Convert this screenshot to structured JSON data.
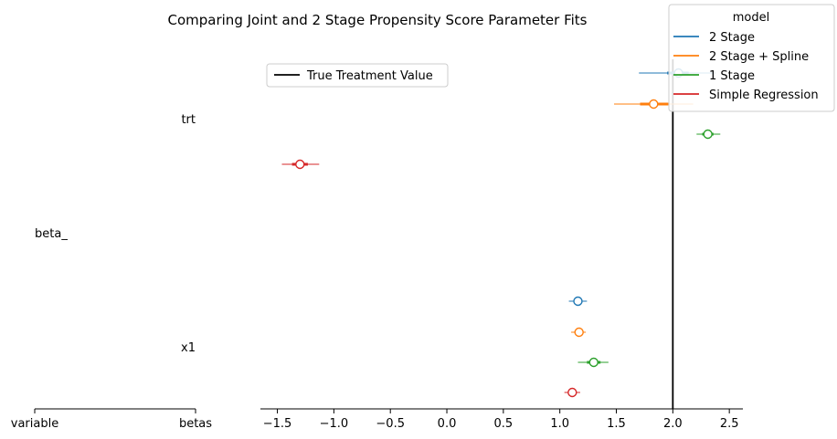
{
  "chart_data": {
    "type": "forest",
    "title": "Comparing Joint and 2 Stage Propensity Score Parameter Fits",
    "xlabel": "",
    "ylabel": "",
    "xlim": [
      -1.65,
      2.62
    ],
    "xticks": [
      -1.5,
      -1.0,
      -0.5,
      0.0,
      0.5,
      1.0,
      1.5,
      2.0,
      2.5
    ],
    "xtick_labels": [
      "−1.5",
      "−1.0",
      "−0.5",
      "0.0",
      "0.5",
      "1.0",
      "1.5",
      "2.0",
      "2.5"
    ],
    "label_axis": {
      "left_label": "variable",
      "right_label": "betas"
    },
    "group_label": "beta_",
    "variables": [
      "trt",
      "x1"
    ],
    "reference_line": {
      "label": "True Treatment Value",
      "value": 2.0,
      "color": "#000000"
    },
    "legend": {
      "title": "model",
      "placement": "top-right"
    },
    "series": [
      {
        "name": "2 Stage",
        "color": "#1f77b4",
        "points": [
          {
            "variable": "trt",
            "mean": 2.05,
            "inner": [
              1.95,
              2.14
            ],
            "outer": [
              1.7,
              2.38
            ]
          },
          {
            "variable": "x1",
            "mean": 1.16,
            "inner": [
              1.12,
              1.2
            ],
            "outer": [
              1.08,
              1.24
            ]
          }
        ]
      },
      {
        "name": "2 Stage + Spline",
        "color": "#ff7f0e",
        "points": [
          {
            "variable": "trt",
            "mean": 1.83,
            "inner": [
              1.71,
              1.96
            ],
            "outer": [
              1.48,
              2.18
            ]
          },
          {
            "variable": "x1",
            "mean": 1.17,
            "inner": [
              1.13,
              1.2
            ],
            "outer": [
              1.1,
              1.23
            ]
          }
        ]
      },
      {
        "name": "1 Stage",
        "color": "#2ca02c",
        "points": [
          {
            "variable": "trt",
            "mean": 2.31,
            "inner": [
              2.26,
              2.36
            ],
            "outer": [
              2.21,
              2.42
            ]
          },
          {
            "variable": "x1",
            "mean": 1.3,
            "inner": [
              1.24,
              1.36
            ],
            "outer": [
              1.16,
              1.43
            ]
          }
        ]
      },
      {
        "name": "Simple Regression",
        "color": "#d62728",
        "points": [
          {
            "variable": "trt",
            "mean": -1.3,
            "inner": [
              -1.37,
              -1.23
            ],
            "outer": [
              -1.46,
              -1.13
            ]
          },
          {
            "variable": "x1",
            "mean": 1.11,
            "inner": [
              1.08,
              1.14
            ],
            "outer": [
              1.04,
              1.18
            ]
          }
        ]
      }
    ]
  }
}
